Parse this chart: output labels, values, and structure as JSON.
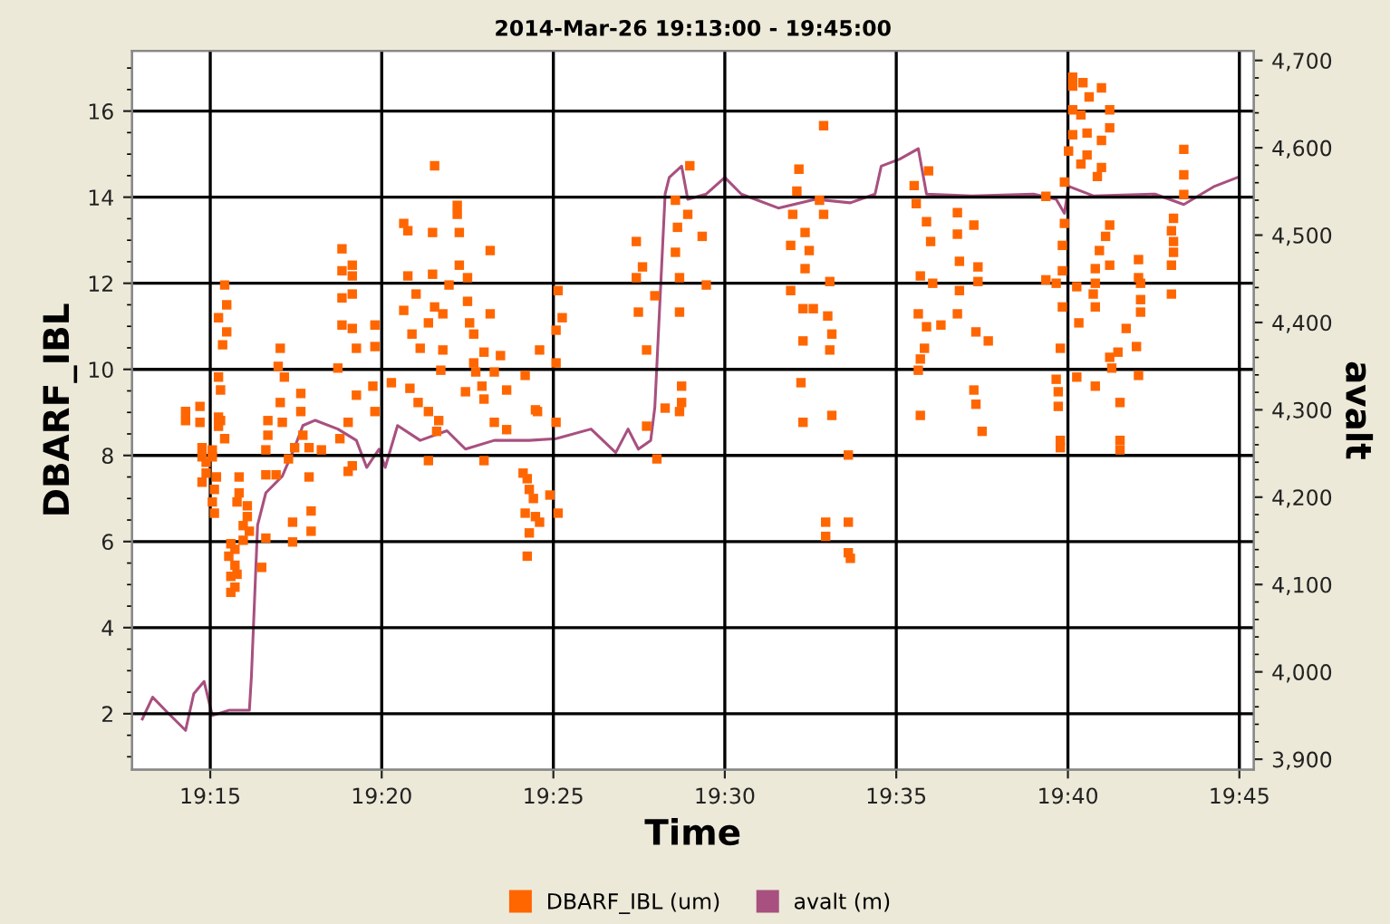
{
  "chart_data": {
    "type": "scatter",
    "title": "2014-Mar-26 19:13:00 - 19:45:00",
    "xlabel": "Time",
    "ylabel": "DBARF_IBL",
    "y2label": "avalt",
    "xlim": [
      19.212,
      19.757
    ],
    "xticks": [
      {
        "value": 19.25,
        "label": "19:15"
      },
      {
        "value": 19.3333,
        "label": "19:20"
      },
      {
        "value": 19.4167,
        "label": "19:25"
      },
      {
        "value": 19.5,
        "label": "19:30"
      },
      {
        "value": 19.5833,
        "label": "19:35"
      },
      {
        "value": 19.6667,
        "label": "19:40"
      },
      {
        "value": 19.75,
        "label": "19:45"
      }
    ],
    "ylim": [
      0.7,
      17.4
    ],
    "yticks": [
      2,
      4,
      6,
      8,
      10,
      12,
      14,
      16
    ],
    "y2lim": [
      3888,
      4711
    ],
    "y2ticks": [
      {
        "value": 3900,
        "label": "3,900"
      },
      {
        "value": 4000,
        "label": "4,000"
      },
      {
        "value": 4100,
        "label": "4,100"
      },
      {
        "value": 4200,
        "label": "4,200"
      },
      {
        "value": 4300,
        "label": "4,300"
      },
      {
        "value": 4400,
        "label": "4,400"
      },
      {
        "value": 4500,
        "label": "4,500"
      },
      {
        "value": 4600,
        "label": "4,600"
      },
      {
        "value": 4700,
        "label": "4,700"
      }
    ],
    "grid": true,
    "legend": "bottom",
    "series": [
      {
        "name": "DBARF_IBL (um)",
        "marker": "square",
        "color": "#ff6600",
        "x": [
          19.359,
          19.37,
          19.37,
          19.344,
          19.346,
          19.358,
          19.371,
          19.386,
          19.314,
          19.314,
          19.319,
          19.319,
          19.371,
          19.346,
          19.358,
          19.375,
          19.366,
          19.257,
          19.314,
          19.319,
          19.35,
          19.375,
          19.419,
          19.258,
          19.359,
          19.344,
          19.363,
          19.386,
          19.254,
          19.421,
          19.314,
          19.319,
          19.33,
          19.356,
          19.376,
          19.258,
          19.378,
          19.348,
          19.418,
          19.256,
          19.33,
          19.352,
          19.321,
          19.284,
          19.363,
          19.378,
          19.383,
          19.391,
          19.41,
          19.418,
          19.312,
          19.362,
          19.283,
          19.388,
          19.379,
          19.254,
          19.286,
          19.338,
          19.403,
          19.347,
          19.329,
          19.382,
          19.255,
          19.294,
          19.321,
          19.374,
          19.394,
          19.383,
          19.351,
          19.284,
          19.238,
          19.245,
          19.238,
          19.245,
          19.356,
          19.409,
          19.361,
          19.388,
          19.255,
          19.33,
          19.294,
          19.278,
          19.317,
          19.418,
          19.457,
          19.46,
          19.457,
          19.466,
          19.458,
          19.462,
          19.462,
          19.476,
          19.482,
          19.477,
          19.476,
          19.478,
          19.478,
          19.483,
          19.479,
          19.479,
          19.471,
          19.489,
          19.491,
          19.548,
          19.536,
          19.535,
          19.546,
          19.533,
          19.548,
          19.539,
          19.532,
          19.541,
          19.539,
          19.532,
          19.551,
          19.543,
          19.55,
          19.538,
          19.552,
          19.538,
          19.551,
          19.537,
          19.552,
          19.538,
          19.56,
          19.549,
          19.56,
          19.549,
          19.56,
          19.561,
          19.592,
          19.599,
          19.593,
          19.598,
          19.6,
          19.613,
          19.621,
          19.613,
          19.614,
          19.623,
          19.595,
          19.601,
          19.614,
          19.623,
          19.594,
          19.598,
          19.613,
          19.605,
          19.622,
          19.628,
          19.597,
          19.595,
          19.594,
          19.621,
          19.622,
          19.595,
          19.625,
          19.669,
          19.674,
          19.669,
          19.683,
          19.677,
          19.669,
          19.687,
          19.673,
          19.687,
          19.669,
          19.676,
          19.683,
          19.667,
          19.676,
          19.673,
          19.683,
          19.665,
          19.681,
          19.723,
          19.723,
          19.723,
          19.656,
          19.718,
          19.717,
          19.718,
          19.718,
          19.717,
          19.717,
          19.665,
          19.687,
          19.685,
          19.664,
          19.682,
          19.701,
          19.664,
          19.68,
          19.687,
          19.701,
          19.656,
          19.661,
          19.702,
          19.671,
          19.68,
          19.702,
          19.679,
          19.664,
          19.68,
          19.672,
          19.702,
          19.695,
          19.663,
          19.7,
          19.691,
          19.687,
          19.688,
          19.661,
          19.671,
          19.68,
          19.701,
          19.662,
          19.662,
          19.692,
          19.663,
          19.663,
          19.692,
          19.692,
          19.254,
          19.254,
          19.257,
          19.246,
          19.251,
          19.246,
          19.248,
          19.251,
          19.248,
          19.246,
          19.253,
          19.252,
          19.251,
          19.252,
          19.264,
          19.264,
          19.263,
          19.268,
          19.268,
          19.266,
          19.269,
          19.266,
          19.26,
          19.262,
          19.259,
          19.262,
          19.263,
          19.26,
          19.262,
          19.26,
          19.275,
          19.277,
          19.278,
          19.277,
          19.277,
          19.282,
          19.285,
          19.29,
          19.29,
          19.299,
          19.299,
          19.298,
          19.288,
          19.291,
          19.295,
          19.298,
          19.304,
          19.317,
          19.319,
          19.313,
          19.356,
          19.36,
          19.383,
          19.394,
          19.408,
          19.402,
          19.404,
          19.405,
          19.407,
          19.403,
          19.408,
          19.41,
          19.405,
          19.404,
          19.415,
          19.419,
          19.467,
          19.478
        ],
        "values": [
          14.73,
          13.81,
          13.6,
          13.39,
          13.22,
          13.18,
          13.18,
          12.76,
          12.8,
          12.29,
          12.42,
          12.17,
          12.42,
          12.17,
          12.21,
          12.13,
          11.96,
          11.96,
          11.66,
          11.75,
          11.75,
          11.58,
          11.83,
          11.5,
          11.45,
          11.37,
          11.29,
          11.29,
          11.2,
          11.2,
          11.03,
          10.95,
          11.03,
          11.08,
          11.08,
          10.87,
          10.82,
          10.82,
          10.91,
          10.57,
          10.53,
          10.49,
          10.49,
          10.49,
          10.45,
          10.15,
          10.4,
          10.32,
          10.45,
          10.15,
          10.03,
          9.98,
          10.07,
          9.94,
          9.94,
          9.82,
          9.82,
          9.69,
          9.86,
          9.56,
          9.61,
          9.61,
          9.52,
          9.44,
          9.4,
          9.48,
          9.52,
          9.31,
          9.23,
          9.23,
          9.02,
          9.14,
          8.81,
          8.77,
          9.02,
          9.02,
          8.81,
          8.77,
          8.81,
          9.02,
          9.02,
          8.81,
          8.77,
          8.77,
          12.97,
          12.38,
          12.13,
          11.71,
          11.33,
          10.45,
          8.68,
          13.93,
          13.6,
          13.3,
          12.72,
          12.13,
          11.33,
          14.73,
          9.61,
          9.23,
          9.1,
          13.09,
          11.96,
          15.66,
          14.65,
          14.14,
          13.93,
          13.6,
          13.6,
          13.18,
          12.88,
          12.76,
          12.34,
          11.83,
          12.04,
          11.41,
          11.24,
          11.41,
          10.82,
          10.66,
          10.45,
          9.69,
          8.93,
          8.77,
          8.01,
          6.45,
          6.45,
          6.12,
          5.74,
          5.61,
          14.27,
          14.61,
          13.85,
          13.43,
          12.97,
          13.64,
          13.35,
          13.14,
          12.51,
          12.38,
          12.17,
          12.0,
          11.83,
          12.04,
          11.29,
          10.99,
          11.29,
          11.03,
          10.87,
          10.66,
          10.49,
          10.24,
          9.98,
          9.52,
          9.19,
          8.93,
          8.56,
          16.79,
          16.66,
          16.58,
          16.54,
          16.33,
          16.03,
          16.03,
          15.91,
          15.61,
          15.45,
          15.49,
          15.32,
          15.07,
          14.98,
          14.77,
          14.69,
          14.35,
          14.48,
          15.11,
          14.52,
          14.06,
          14.02,
          13.51,
          13.22,
          12.97,
          12.72,
          12.42,
          11.75,
          13.39,
          13.35,
          13.09,
          12.88,
          12.76,
          12.55,
          12.29,
          12.34,
          12.42,
          12.13,
          12.08,
          12.0,
          12.0,
          11.92,
          12.0,
          11.62,
          11.75,
          11.45,
          11.45,
          11.08,
          11.33,
          10.95,
          10.49,
          10.53,
          10.4,
          10.28,
          10.03,
          9.77,
          9.82,
          9.61,
          9.86,
          9.48,
          9.14,
          9.23,
          8.35,
          8.18,
          8.35,
          8.13,
          8.89,
          8.68,
          8.39,
          8.18,
          8.13,
          7.97,
          7.84,
          7.97,
          7.59,
          7.38,
          7.5,
          7.21,
          6.92,
          6.66,
          7.5,
          7.13,
          6.92,
          6.83,
          6.58,
          6.37,
          6.24,
          6.03,
          5.95,
          5.82,
          5.66,
          5.45,
          5.24,
          5.19,
          4.94,
          4.82,
          5.4,
          6.08,
          8.47,
          8.13,
          7.55,
          7.55,
          8.77,
          6.45,
          5.99,
          6.71,
          6.24,
          7.5,
          7.92,
          8.18,
          8.47,
          8.18,
          8.13,
          7.63,
          7.76,
          8.39,
          7.88,
          8.56,
          7.88,
          8.6,
          9.06,
          7.59,
          7.46,
          7.21,
          7.0,
          6.66,
          6.58,
          6.45,
          6.2,
          5.66,
          7.08,
          6.66,
          7.92,
          9.02
        ]
      },
      {
        "name": "avalt (m)",
        "type": "line",
        "axis": "y2",
        "line_style": "solid",
        "color": "#a8507f",
        "x": [
          19.217,
          19.222,
          19.229,
          19.238,
          19.242,
          19.247,
          19.251,
          19.259,
          19.269,
          19.27,
          19.273,
          19.277,
          19.285,
          19.291,
          19.295,
          19.301,
          19.312,
          19.321,
          19.326,
          19.332,
          19.335,
          19.341,
          19.352,
          19.365,
          19.374,
          19.388,
          19.405,
          19.418,
          19.435,
          19.447,
          19.453,
          19.458,
          19.464,
          19.466,
          19.471,
          19.473,
          19.479,
          19.482,
          19.491,
          19.5,
          19.508,
          19.526,
          19.544,
          19.561,
          19.573,
          19.576,
          19.585,
          19.594,
          19.598,
          19.62,
          19.65,
          19.661,
          19.665,
          19.667,
          19.679,
          19.709,
          19.723,
          19.738,
          19.749
        ],
        "values": [
          3946,
          3971,
          3954,
          3933,
          3975,
          3989,
          3950,
          3956,
          3956,
          3995,
          4168,
          4205,
          4224,
          4257,
          4282,
          4288,
          4278,
          4265,
          4234,
          4255,
          4234,
          4282,
          4265,
          4276,
          4255,
          4265,
          4265,
          4267,
          4278,
          4251,
          4278,
          4255,
          4265,
          4303,
          4547,
          4566,
          4579,
          4541,
          4547,
          4566,
          4547,
          4531,
          4541,
          4537,
          4547,
          4579,
          4587,
          4599,
          4547,
          4545,
          4547,
          4541,
          4525,
          4556,
          4545,
          4547,
          4535,
          4556,
          4566
        ]
      }
    ]
  }
}
